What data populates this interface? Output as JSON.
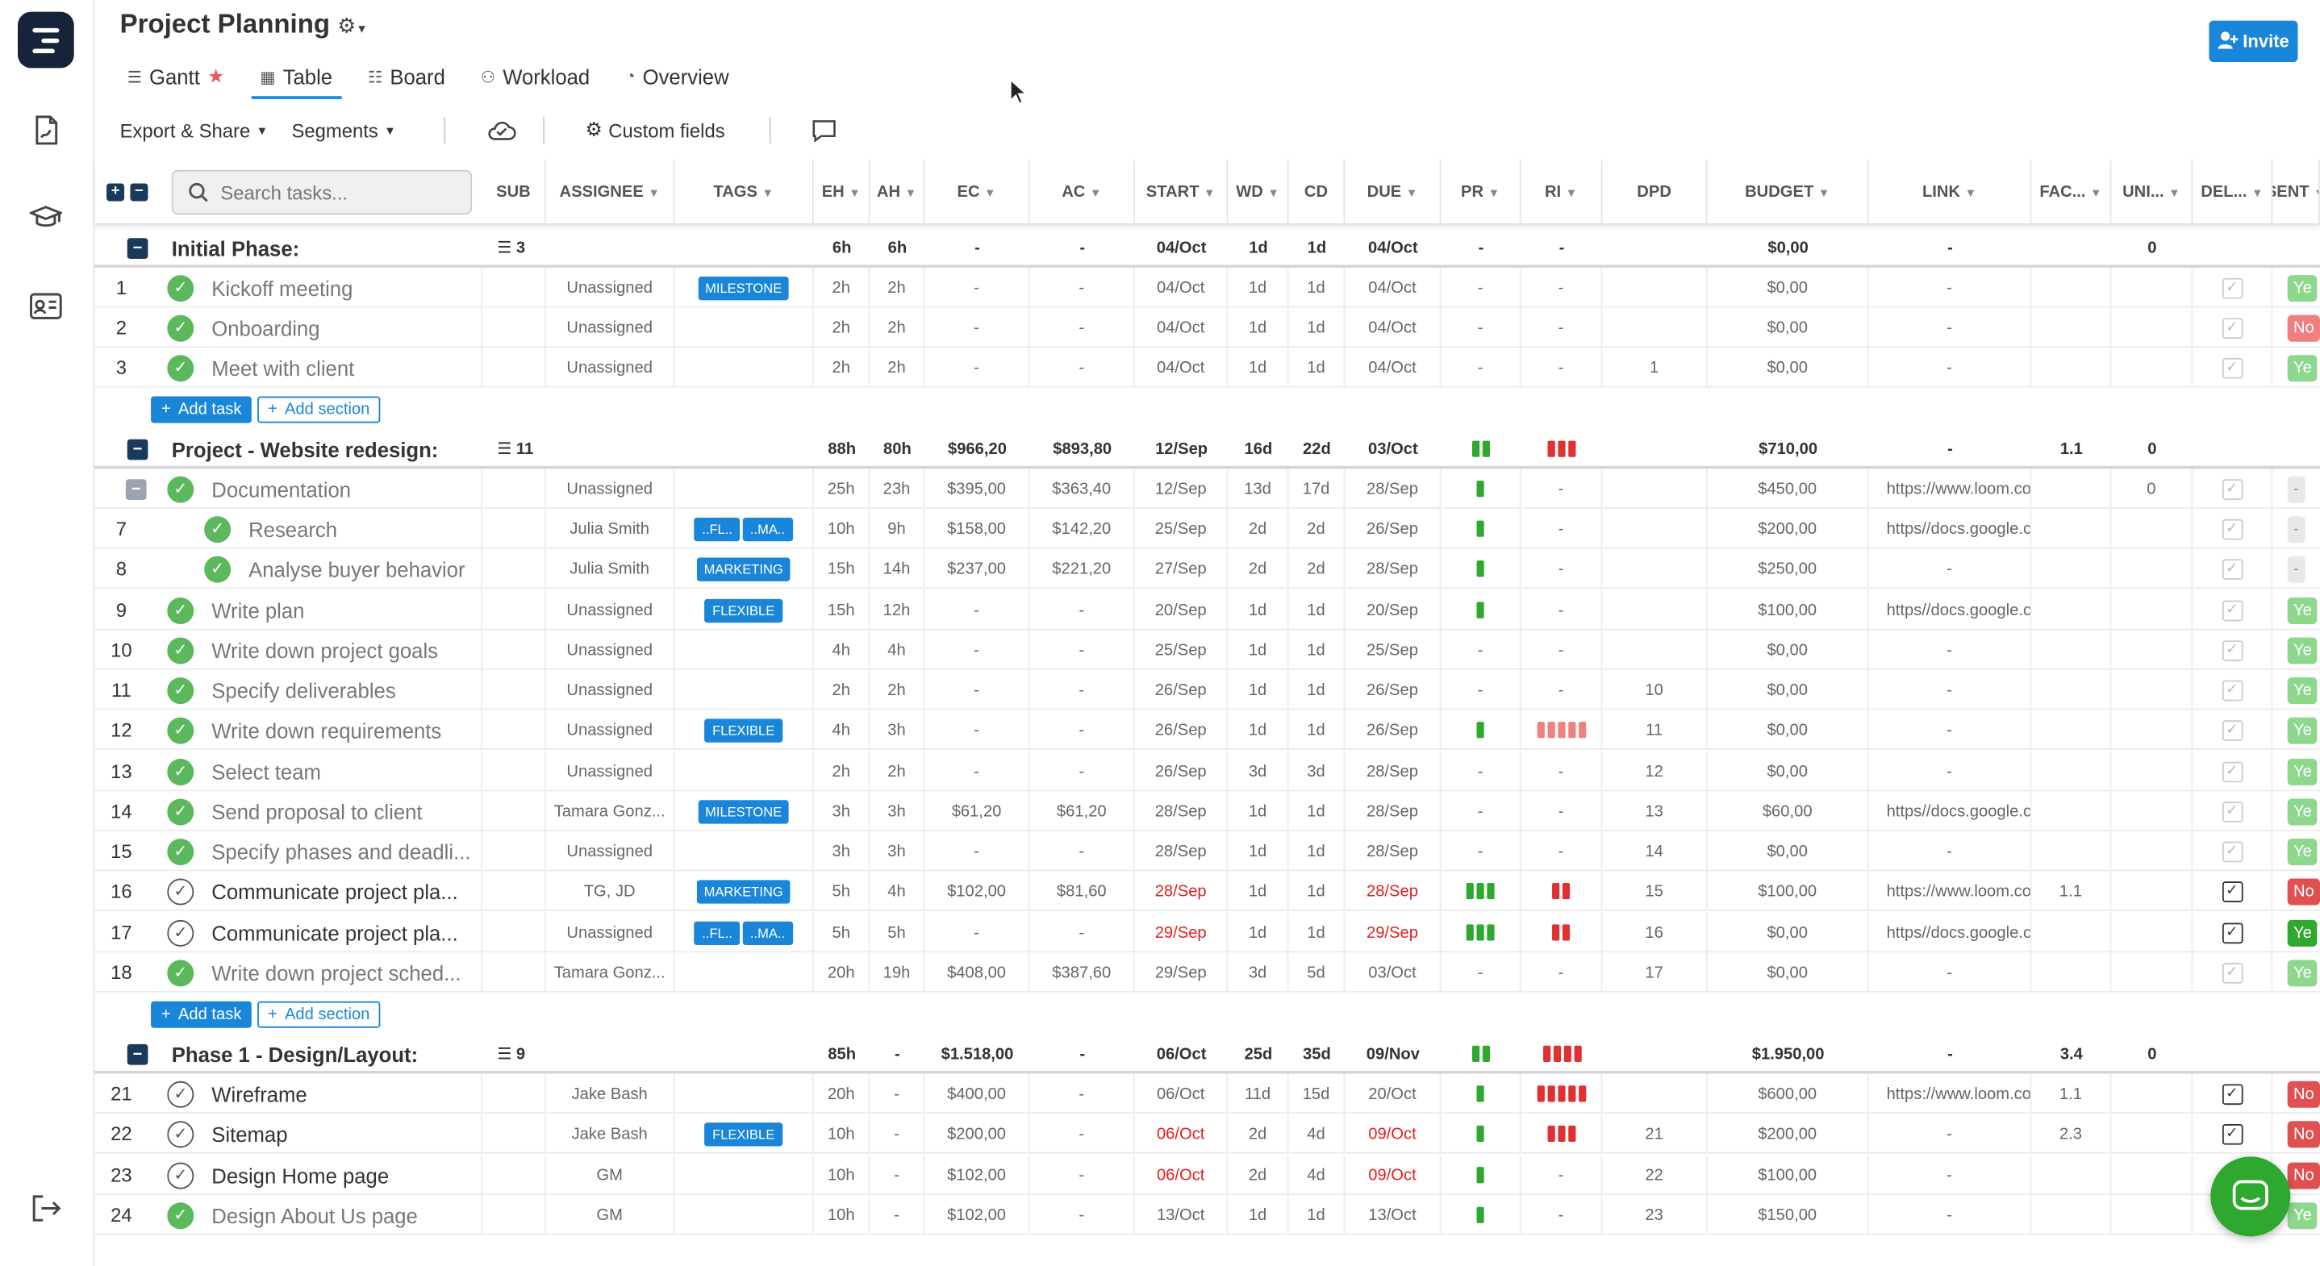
{
  "app": {
    "title": "Project Planning",
    "invite_label": "Invite",
    "accent": "#1a86d9"
  },
  "sidebar": {
    "items": [
      {
        "icon": "report-icon"
      },
      {
        "icon": "graduation-cap-icon"
      },
      {
        "icon": "contact-card-icon"
      },
      {
        "icon": "logout-icon"
      }
    ]
  },
  "tabs": [
    {
      "label": "Gantt",
      "icon": "gantt-icon"
    },
    {
      "label": "Table",
      "icon": "table-icon"
    },
    {
      "label": "Board",
      "icon": "board-icon"
    },
    {
      "label": "Workload",
      "icon": "workload-icon"
    },
    {
      "label": "Overview",
      "icon": "overview-icon"
    }
  ],
  "toolbar": {
    "export_label": "Export & Share",
    "segments_label": "Segments",
    "custom_fields_label": "Custom fields"
  },
  "table": {
    "search_placeholder": "Search tasks...",
    "columns": [
      "SUB",
      "ASSIGNEE",
      "TAGS",
      "EH",
      "AH",
      "EC",
      "AC",
      "START",
      "WD",
      "CD",
      "DUE",
      "PR",
      "RI",
      "DPD",
      "BUDGET",
      "LINK",
      "FAC...",
      "UNI...",
      "DEL...",
      "SENT"
    ],
    "add_task_label": "Add task",
    "add_section_label": "Add section",
    "rows": [
      {
        "kind": "section",
        "name": "Initial Phase:",
        "sub": "3",
        "eh": "6h",
        "ah": "6h",
        "ec": "-",
        "ac": "-",
        "start": "04/Oct",
        "wd": "1d",
        "cd": "1d",
        "due": "04/Oct",
        "pr": "-",
        "ri": "-",
        "dpd": "",
        "budget": "$0,00",
        "link": "-",
        "fac": "",
        "uni": "0"
      },
      {
        "kind": "task",
        "num": "1",
        "done": true,
        "name": "Kickoff meeting",
        "assignee": "Unassigned",
        "tags": [
          "MILESTONE"
        ],
        "eh": "2h",
        "ah": "2h",
        "ec": "-",
        "ac": "-",
        "start": "04/Oct",
        "wd": "1d",
        "cd": "1d",
        "due": "04/Oct",
        "pr": "-",
        "ri": "-",
        "dpd": "",
        "budget": "$0,00",
        "link": "-",
        "fac": "",
        "uni": "",
        "del": "off",
        "sent": "Ye"
      },
      {
        "kind": "task",
        "num": "2",
        "done": true,
        "name": "Onboarding",
        "assignee": "Unassigned",
        "tags": [],
        "eh": "2h",
        "ah": "2h",
        "ec": "-",
        "ac": "-",
        "start": "04/Oct",
        "wd": "1d",
        "cd": "1d",
        "due": "04/Oct",
        "pr": "-",
        "ri": "-",
        "dpd": "",
        "budget": "$0,00",
        "link": "-",
        "fac": "",
        "uni": "",
        "del": "off",
        "sent": "No"
      },
      {
        "kind": "task",
        "num": "3",
        "done": true,
        "name": "Meet with client",
        "assignee": "Unassigned",
        "tags": [],
        "eh": "2h",
        "ah": "2h",
        "ec": "-",
        "ac": "-",
        "start": "04/Oct",
        "wd": "1d",
        "cd": "1d",
        "due": "04/Oct",
        "pr": "-",
        "ri": "-",
        "dpd": "1",
        "budget": "$0,00",
        "link": "-",
        "fac": "",
        "uni": "",
        "del": "off",
        "sent": "Ye"
      },
      {
        "kind": "add"
      },
      {
        "kind": "section",
        "name": "Project - Website redesign:",
        "sub": "11",
        "eh": "88h",
        "ah": "80h",
        "ec": "$966,20",
        "ac": "$893,80",
        "start": "12/Sep",
        "wd": "16d",
        "cd": "22d",
        "due": "03/Oct",
        "pr": "gg",
        "ri": "rrr",
        "dpd": "",
        "budget": "$710,00",
        "link": "-",
        "fac": "1.1",
        "uni": "0"
      },
      {
        "kind": "task",
        "num": "",
        "parent": true,
        "done": true,
        "name": "Documentation",
        "assignee": "Unassigned",
        "tags": [],
        "eh": "25h",
        "ah": "23h",
        "ec": "$395,00",
        "ac": "$363,40",
        "start": "12/Sep",
        "wd": "13d",
        "cd": "17d",
        "due": "28/Sep",
        "pr": "g",
        "ri": "-",
        "dpd": "",
        "budget": "$450,00",
        "link": "https://www.loom.cor",
        "fac": "",
        "uni": "0",
        "del": "off",
        "sent": "-"
      },
      {
        "kind": "task",
        "num": "7",
        "sub": true,
        "done": true,
        "name": "Research",
        "assignee": "Julia Smith",
        "tags": [
          "..FL..",
          "..MA.."
        ],
        "eh": "10h",
        "ah": "9h",
        "ec": "$158,00",
        "ac": "$142,20",
        "start": "25/Sep",
        "wd": "2d",
        "cd": "2d",
        "due": "26/Sep",
        "pr": "g",
        "ri": "-",
        "dpd": "",
        "budget": "$200,00",
        "link": "https//docs.google.cc",
        "fac": "",
        "uni": "",
        "del": "off",
        "sent": "-"
      },
      {
        "kind": "task",
        "num": "8",
        "sub": true,
        "done": true,
        "name": "Analyse buyer behavior",
        "assignee": "Julia Smith",
        "tags": [
          "MARKETING"
        ],
        "eh": "15h",
        "ah": "14h",
        "ec": "$237,00",
        "ac": "$221,20",
        "start": "27/Sep",
        "wd": "2d",
        "cd": "2d",
        "due": "28/Sep",
        "pr": "g",
        "ri": "-",
        "dpd": "",
        "budget": "$250,00",
        "link": "-",
        "fac": "",
        "uni": "",
        "del": "off",
        "sent": "-"
      },
      {
        "kind": "task",
        "num": "9",
        "done": true,
        "name": "Write plan",
        "assignee": "Unassigned",
        "tags": [
          "FLEXIBLE"
        ],
        "eh": "15h",
        "ah": "12h",
        "ec": "-",
        "ac": "-",
        "start": "20/Sep",
        "wd": "1d",
        "cd": "1d",
        "due": "20/Sep",
        "pr": "g",
        "ri": "-",
        "dpd": "",
        "budget": "$100,00",
        "link": "https//docs.google.cc",
        "fac": "",
        "uni": "",
        "del": "off",
        "sent": "Ye"
      },
      {
        "kind": "task",
        "num": "10",
        "done": true,
        "name": "Write down project goals",
        "assignee": "Unassigned",
        "tags": [],
        "eh": "4h",
        "ah": "4h",
        "ec": "-",
        "ac": "-",
        "start": "25/Sep",
        "wd": "1d",
        "cd": "1d",
        "due": "25/Sep",
        "pr": "-",
        "ri": "-",
        "dpd": "",
        "budget": "$0,00",
        "link": "-",
        "fac": "",
        "uni": "",
        "del": "off",
        "sent": "Ye"
      },
      {
        "kind": "task",
        "num": "11",
        "done": true,
        "name": "Specify deliverables",
        "assignee": "Unassigned",
        "tags": [],
        "eh": "2h",
        "ah": "2h",
        "ec": "-",
        "ac": "-",
        "start": "26/Sep",
        "wd": "1d",
        "cd": "1d",
        "due": "26/Sep",
        "pr": "-",
        "ri": "-",
        "dpd": "10",
        "budget": "$0,00",
        "link": "-",
        "fac": "",
        "uni": "",
        "del": "off",
        "sent": "Ye"
      },
      {
        "kind": "task",
        "num": "12",
        "done": true,
        "name": "Write down requirements",
        "assignee": "Unassigned",
        "tags": [
          "FLEXIBLE"
        ],
        "eh": "4h",
        "ah": "3h",
        "ec": "-",
        "ac": "-",
        "start": "26/Sep",
        "wd": "1d",
        "cd": "1d",
        "due": "26/Sep",
        "pr": "g",
        "ri": "lllll",
        "dpd": "11",
        "budget": "$0,00",
        "link": "-",
        "fac": "",
        "uni": "",
        "del": "off",
        "sent": "Ye"
      },
      {
        "kind": "task",
        "num": "13",
        "done": true,
        "name": "Select team",
        "assignee": "Unassigned",
        "tags": [],
        "eh": "2h",
        "ah": "2h",
        "ec": "-",
        "ac": "-",
        "start": "26/Sep",
        "wd": "3d",
        "cd": "3d",
        "due": "28/Sep",
        "pr": "-",
        "ri": "-",
        "dpd": "12",
        "budget": "$0,00",
        "link": "-",
        "fac": "",
        "uni": "",
        "del": "off",
        "sent": "Ye"
      },
      {
        "kind": "task",
        "num": "14",
        "done": true,
        "name": "Send proposal to client",
        "assignee": "Tamara Gonz...",
        "tags": [
          "MILESTONE"
        ],
        "eh": "3h",
        "ah": "3h",
        "ec": "$61,20",
        "ac": "$61,20",
        "start": "28/Sep",
        "wd": "1d",
        "cd": "1d",
        "due": "28/Sep",
        "pr": "-",
        "ri": "-",
        "dpd": "13",
        "budget": "$60,00",
        "link": "https//docs.google.cc",
        "fac": "",
        "uni": "",
        "del": "off",
        "sent": "Ye"
      },
      {
        "kind": "task",
        "num": "15",
        "done": true,
        "name": "Specify phases and deadli...",
        "assignee": "Unassigned",
        "tags": [],
        "eh": "3h",
        "ah": "3h",
        "ec": "-",
        "ac": "-",
        "start": "28/Sep",
        "wd": "1d",
        "cd": "1d",
        "due": "28/Sep",
        "pr": "-",
        "ri": "-",
        "dpd": "14",
        "budget": "$0,00",
        "link": "-",
        "fac": "",
        "uni": "",
        "del": "off",
        "sent": "Ye"
      },
      {
        "kind": "task",
        "num": "16",
        "done": false,
        "name": "Communicate project pla...",
        "assignee": "TG, JD",
        "tags": [
          "MARKETING"
        ],
        "eh": "5h",
        "ah": "4h",
        "ec": "$102,00",
        "ac": "$81,60",
        "start": "28/Sep",
        "startRed": true,
        "wd": "1d",
        "cd": "1d",
        "due": "28/Sep",
        "dueRed": true,
        "pr": "ggg",
        "ri": "rr",
        "dpd": "15",
        "budget": "$100,00",
        "link": "https://www.loom.cor",
        "fac": "1.1",
        "uni": "",
        "del": "on",
        "sent": "No"
      },
      {
        "kind": "task",
        "num": "17",
        "done": false,
        "name": "Communicate project pla...",
        "assignee": "Unassigned",
        "tags": [
          "..FL..",
          "..MA.."
        ],
        "eh": "5h",
        "ah": "5h",
        "ec": "-",
        "ac": "-",
        "start": "29/Sep",
        "startRed": true,
        "wd": "1d",
        "cd": "1d",
        "due": "29/Sep",
        "dueRed": true,
        "pr": "ggg",
        "ri": "rr",
        "dpd": "16",
        "budget": "$0,00",
        "link": "https//docs.google.cc",
        "fac": "",
        "uni": "",
        "del": "on",
        "sent": "Ye"
      },
      {
        "kind": "task",
        "num": "18",
        "done": true,
        "name": "Write down project sched...",
        "assignee": "Tamara Gonz...",
        "tags": [],
        "eh": "20h",
        "ah": "19h",
        "ec": "$408,00",
        "ac": "$387,60",
        "start": "29/Sep",
        "wd": "3d",
        "cd": "5d",
        "due": "03/Oct",
        "pr": "-",
        "ri": "-",
        "dpd": "17",
        "budget": "$0,00",
        "link": "-",
        "fac": "",
        "uni": "",
        "del": "off",
        "sent": "Ye"
      },
      {
        "kind": "add"
      },
      {
        "kind": "section",
        "name": "Phase 1 - Design/Layout:",
        "sub": "9",
        "eh": "85h",
        "ah": "-",
        "ec": "$1.518,00",
        "ac": "-",
        "start": "06/Oct",
        "wd": "25d",
        "cd": "35d",
        "due": "09/Nov",
        "pr": "gg",
        "ri": "rrrr",
        "dpd": "",
        "budget": "$1.950,00",
        "link": "-",
        "fac": "3.4",
        "uni": "0"
      },
      {
        "kind": "task",
        "num": "21",
        "done": false,
        "name": "Wireframe",
        "assignee": "Jake Bash",
        "tags": [],
        "eh": "20h",
        "ah": "-",
        "ec": "$400,00",
        "ac": "-",
        "start": "06/Oct",
        "wd": "11d",
        "cd": "15d",
        "due": "20/Oct",
        "pr": "g",
        "ri": "rrrrr",
        "dpd": "",
        "budget": "$600,00",
        "link": "https://www.loom.cor",
        "fac": "1.1",
        "uni": "",
        "del": "on",
        "sent": "No"
      },
      {
        "kind": "task",
        "num": "22",
        "done": false,
        "name": "Sitemap",
        "assignee": "Jake Bash",
        "tags": [
          "FLEXIBLE"
        ],
        "eh": "10h",
        "ah": "-",
        "ec": "$200,00",
        "ac": "-",
        "start": "06/Oct",
        "startRed": true,
        "wd": "2d",
        "cd": "4d",
        "due": "09/Oct",
        "dueRed": true,
        "pr": "g",
        "ri": "rrr",
        "dpd": "21",
        "budget": "$200,00",
        "link": "-",
        "fac": "2.3",
        "uni": "",
        "del": "on",
        "sent": "No"
      },
      {
        "kind": "task",
        "num": "23",
        "done": false,
        "name": "Design Home page",
        "assignee": "GM",
        "tags": [],
        "eh": "10h",
        "ah": "-",
        "ec": "$102,00",
        "ac": "-",
        "start": "06/Oct",
        "startRed": true,
        "wd": "2d",
        "cd": "4d",
        "due": "09/Oct",
        "dueRed": true,
        "pr": "g",
        "ri": "-",
        "dpd": "22",
        "budget": "$100,00",
        "link": "-",
        "fac": "",
        "uni": "",
        "del": "",
        "sent": "No"
      },
      {
        "kind": "task",
        "num": "24",
        "done": true,
        "name": "Design About Us page",
        "assignee": "GM",
        "tags": [],
        "eh": "10h",
        "ah": "-",
        "ec": "$102,00",
        "ac": "-",
        "start": "13/Oct",
        "wd": "1d",
        "cd": "1d",
        "due": "13/Oct",
        "pr": "g",
        "ri": "-",
        "dpd": "23",
        "budget": "$150,00",
        "link": "-",
        "fac": "",
        "uni": "",
        "del": "off",
        "sent": "Ye"
      }
    ]
  }
}
